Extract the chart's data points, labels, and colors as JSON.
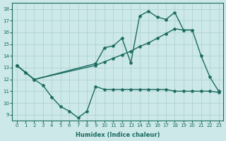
{
  "xlabel": "Humidex (Indice chaleur)",
  "xlim": [
    -0.5,
    23.5
  ],
  "ylim": [
    8.5,
    18.5
  ],
  "yticks": [
    9,
    10,
    11,
    12,
    13,
    14,
    15,
    16,
    17,
    18
  ],
  "xticks": [
    0,
    1,
    2,
    3,
    4,
    5,
    6,
    7,
    8,
    9,
    10,
    11,
    12,
    13,
    14,
    15,
    16,
    17,
    18,
    19,
    20,
    21,
    22,
    23
  ],
  "color": "#1a6b60",
  "bg_color": "#cce8e8",
  "grid_color": "#aacfcf",
  "line1_x": [
    0,
    1,
    2,
    3,
    4,
    5,
    6,
    7,
    8,
    9,
    10,
    11,
    12,
    13,
    14,
    15,
    16,
    17,
    18,
    19,
    20,
    21,
    22,
    23
  ],
  "line1_y": [
    13.2,
    12.6,
    12.0,
    11.5,
    10.5,
    9.7,
    9.3,
    8.75,
    9.3,
    11.4,
    11.15,
    11.15,
    11.15,
    11.15,
    11.15,
    11.15,
    11.15,
    11.15,
    11.0,
    11.0,
    11.0,
    11.0,
    11.0,
    10.9
  ],
  "line2_x": [
    0,
    2,
    9,
    10,
    11,
    12,
    13,
    14,
    15,
    16,
    17,
    18,
    19,
    20
  ],
  "line2_y": [
    13.2,
    12.0,
    13.2,
    13.5,
    13.8,
    14.1,
    14.4,
    14.8,
    15.1,
    15.5,
    15.9,
    16.3,
    16.2,
    16.2
  ],
  "line3_x": [
    0,
    1,
    2,
    9,
    10,
    11,
    12,
    13,
    14,
    15,
    16,
    17,
    18,
    19,
    20,
    21,
    22,
    23
  ],
  "line3_y": [
    13.2,
    12.6,
    12.0,
    13.35,
    14.7,
    14.85,
    15.5,
    13.4,
    17.4,
    17.8,
    17.3,
    17.1,
    17.7,
    16.2,
    16.2,
    14.0,
    12.2,
    11.0
  ],
  "marker": "*",
  "markersize": 3,
  "linewidth": 1.0
}
